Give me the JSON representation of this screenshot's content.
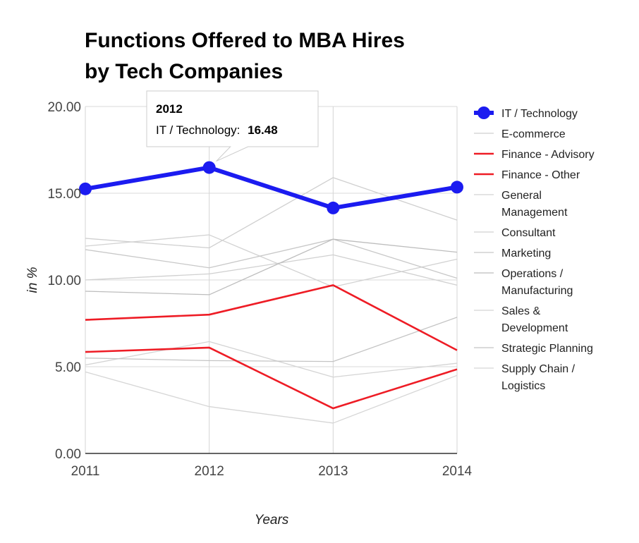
{
  "chart_data": {
    "type": "line",
    "title_lines": [
      "Functions Offered to MBA Hires",
      "by Tech Companies"
    ],
    "xlabel": "Years",
    "ylabel": "in %",
    "categories": [
      "2011",
      "2012",
      "2013",
      "2014"
    ],
    "ylim": [
      0,
      20
    ],
    "yticks": [
      "0.00",
      "5.00",
      "10.00",
      "15.00",
      "20.00"
    ],
    "grid": true,
    "legend_position": "right",
    "series": [
      {
        "name": "IT / Technology",
        "legend_lines": [
          "IT / Technology"
        ],
        "values": [
          15.25,
          16.48,
          14.15,
          15.35
        ],
        "color": "#1b1bf0",
        "emphasis": "highlight"
      },
      {
        "name": "E-commerce",
        "legend_lines": [
          "E-commerce"
        ],
        "values": [
          12.4,
          11.85,
          15.9,
          13.45
        ],
        "color": "#cfcfcf",
        "emphasis": "faded"
      },
      {
        "name": "Finance - Advisory",
        "legend_lines": [
          "Finance - Advisory"
        ],
        "values": [
          7.7,
          8.0,
          9.7,
          5.95
        ],
        "color": "#ee1c25",
        "emphasis": "normal"
      },
      {
        "name": "Finance - Other",
        "legend_lines": [
          "Finance - Other"
        ],
        "values": [
          5.85,
          6.1,
          2.6,
          4.85
        ],
        "color": "#ee1c25",
        "emphasis": "normal"
      },
      {
        "name": "General Management",
        "legend_lines": [
          "General",
          "Management"
        ],
        "values": [
          11.95,
          12.6,
          9.6,
          11.2
        ],
        "color": "#d2d2d2",
        "emphasis": "faded"
      },
      {
        "name": "Consultant",
        "legend_lines": [
          "Consultant"
        ],
        "values": [
          10.0,
          10.35,
          11.45,
          9.7
        ],
        "color": "#d0d0d0",
        "emphasis": "faded"
      },
      {
        "name": "Marketing",
        "legend_lines": [
          "Marketing"
        ],
        "values": [
          11.75,
          10.7,
          12.35,
          10.1
        ],
        "color": "#c8c8c8",
        "emphasis": "faded"
      },
      {
        "name": "Operations / Manufacturing",
        "legend_lines": [
          "Operations /",
          "Manufacturing"
        ],
        "values": [
          9.35,
          9.15,
          12.35,
          11.6
        ],
        "color": "#bdbdbd",
        "emphasis": "faded"
      },
      {
        "name": "Sales & Development",
        "legend_lines": [
          "Sales &",
          "Development"
        ],
        "values": [
          5.1,
          6.45,
          4.4,
          5.2
        ],
        "color": "#d4d4d4",
        "emphasis": "faded"
      },
      {
        "name": "Strategic Planning",
        "legend_lines": [
          "Strategic Planning"
        ],
        "values": [
          5.5,
          5.35,
          5.3,
          7.85
        ],
        "color": "#c4c4c4",
        "emphasis": "faded"
      },
      {
        "name": "Supply Chain / Logistics",
        "legend_lines": [
          "Supply Chain /",
          "Logistics"
        ],
        "values": [
          4.7,
          2.7,
          1.75,
          4.5
        ],
        "color": "#d6d6d6",
        "emphasis": "faded"
      }
    ],
    "tooltip": {
      "category": "2012",
      "series_label": "IT / Technology:",
      "value": "16.48"
    }
  }
}
